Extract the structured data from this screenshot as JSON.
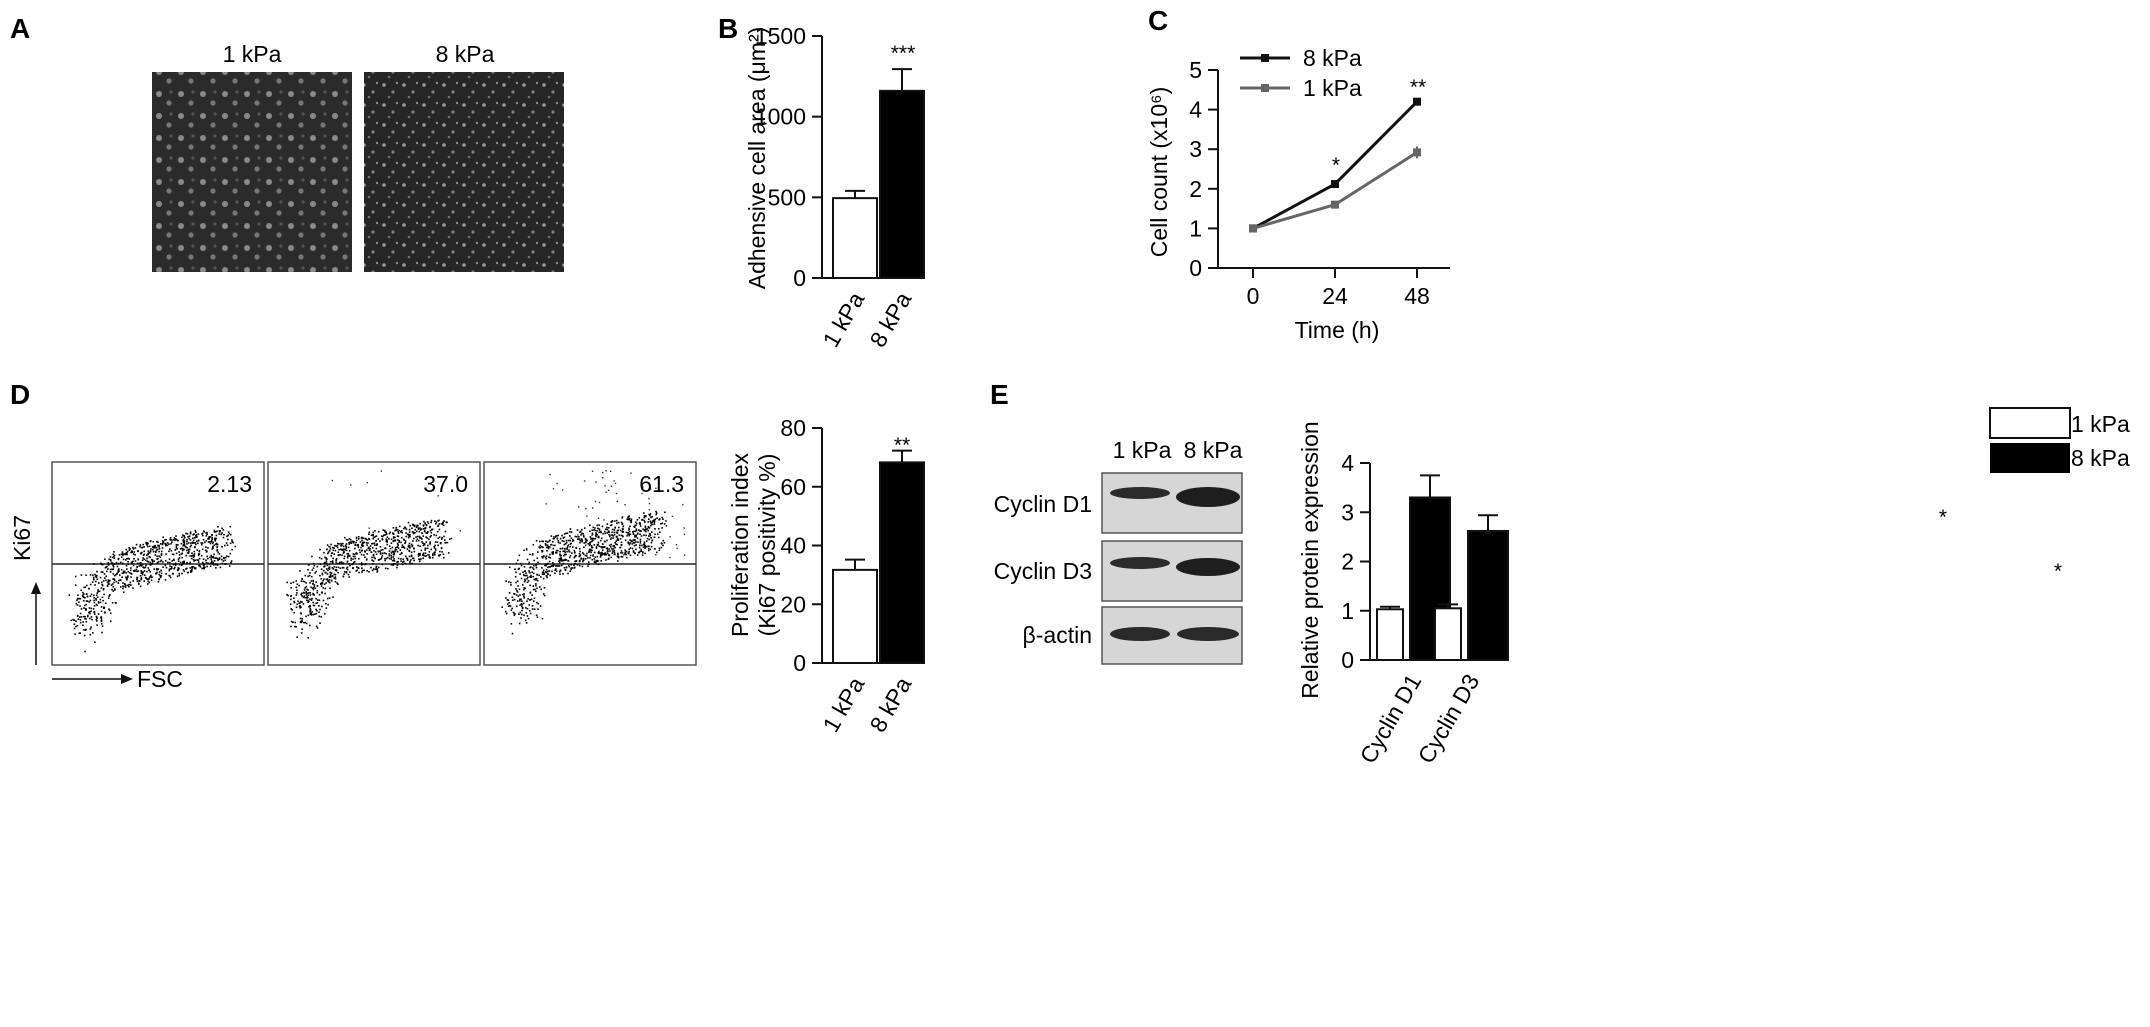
{
  "panels": {
    "a": {
      "letter": "A",
      "conditions": [
        "1 kPa",
        "8 kPa"
      ]
    },
    "b": {
      "letter": "B",
      "ylabel": "Adhensive cell area (μm²)",
      "categories": [
        "1 kPa",
        "8 kPa"
      ],
      "significance": "***"
    },
    "c": {
      "letter": "C",
      "ylabel": "Cell count (x10⁶)",
      "xlabel": "Time (h)",
      "legend": [
        "8 kPa",
        "1 kPa"
      ],
      "significance": [
        "*",
        "**"
      ]
    },
    "d": {
      "letter": "D",
      "flow_values": [
        "2.13",
        "37.0",
        "61.3"
      ],
      "flow_ylabel": "Ki67",
      "flow_xlabel": "FSC",
      "bar_ylabel_line1": "Proliferation index",
      "bar_ylabel_line2": "(Ki67 positivity %)",
      "categories": [
        "1 kPa",
        "8 kPa"
      ],
      "significance": "**"
    },
    "e": {
      "letter": "E",
      "blot_lanes": [
        "1 kPa",
        "8 kPa"
      ],
      "blot_rows": [
        "Cyclin D1",
        "Cyclin D3",
        "β-actin"
      ],
      "ylabel": "Relative protein expression",
      "categories": [
        "Cyclin D1",
        "Cyclin D3"
      ],
      "legend": [
        "1 kPa",
        "8 kPa"
      ],
      "significance": [
        "*",
        "*"
      ]
    }
  },
  "colors": {
    "white_bar": "#ffffff",
    "black_bar": "#000000",
    "line_8kpa": "#111111",
    "line_1kpa": "#666666"
  },
  "chart_data": [
    {
      "id": "B",
      "type": "bar",
      "categories": [
        "1 kPa",
        "8 kPa"
      ],
      "values": [
        495,
        1160
      ],
      "errors": [
        45,
        135
      ],
      "ylim": [
        0,
        1500
      ],
      "yticks": [
        0,
        500,
        1000,
        1500
      ],
      "ylabel": "Adhensive cell area (μm²)",
      "grid": false
    },
    {
      "id": "C",
      "type": "line",
      "x": [
        0,
        24,
        48
      ],
      "xticks": [
        0,
        24,
        48
      ],
      "xlabel": "Time (h)",
      "ylim": [
        0,
        5
      ],
      "yticks": [
        0,
        1,
        2,
        3,
        4,
        5
      ],
      "ylabel": "Cell count (x10⁶)",
      "series": [
        {
          "name": "8 kPa",
          "values": [
            1.0,
            2.12,
            4.2
          ],
          "errors": [
            0.03,
            0.08,
            0.07
          ]
        },
        {
          "name": "1 kPa",
          "values": [
            1.0,
            1.6,
            2.92
          ],
          "errors": [
            0.03,
            0.05,
            0.15
          ]
        }
      ],
      "legend": "top-left",
      "grid": false
    },
    {
      "id": "D",
      "type": "bar",
      "categories": [
        "1 kPa",
        "8 kPa"
      ],
      "values": [
        31.7,
        68.3
      ],
      "errors": [
        3.5,
        4.0
      ],
      "ylim": [
        0,
        80
      ],
      "yticks": [
        0,
        20,
        40,
        60,
        80
      ],
      "ylabel": "Proliferation index (Ki67 positivity %)",
      "grid": false
    },
    {
      "id": "E",
      "type": "bar",
      "categories": [
        "Cyclin D1",
        "Cyclin D3"
      ],
      "series": [
        {
          "name": "1 kPa",
          "values": [
            1.03,
            1.05
          ],
          "errors": [
            0.05,
            0.08
          ]
        },
        {
          "name": "8 kPa",
          "values": [
            3.3,
            2.62
          ],
          "errors": [
            0.45,
            0.32
          ]
        }
      ],
      "ylim": [
        0,
        4
      ],
      "yticks": [
        0,
        1,
        2,
        3,
        4
      ],
      "ylabel": "Relative protein expression",
      "legend": "top-right",
      "grid": false
    }
  ]
}
